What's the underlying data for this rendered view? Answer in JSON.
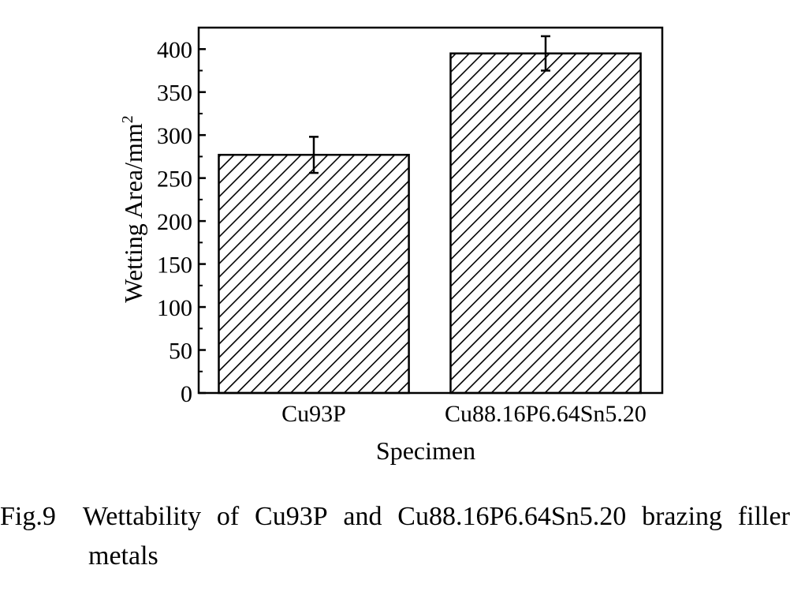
{
  "chart_data": {
    "type": "bar",
    "categories": [
      "Cu93P",
      "Cu88.16P6.64Sn5.20"
    ],
    "values": [
      277,
      395
    ],
    "errors": [
      21,
      20
    ],
    "xlabel": "Specimen",
    "ylabel": "Wetting Area/mm",
    "ylabel_sup": "2",
    "ylim": [
      0,
      425
    ],
    "yticks": [
      0,
      50,
      100,
      150,
      200,
      250,
      300,
      350,
      400
    ],
    "ytick_minor_step": 25,
    "bar_fill": "hatched",
    "grid": false,
    "legend": "none"
  },
  "caption": {
    "label": "Fig.9",
    "text_line1": "Wettability of Cu93P and Cu88.16P6.64Sn5.20 brazing filler",
    "text_line2": "metals"
  },
  "colors": {
    "axis": "#000000",
    "bar_edge": "#000000",
    "hatch": "#000000",
    "background": "#ffffff"
  }
}
